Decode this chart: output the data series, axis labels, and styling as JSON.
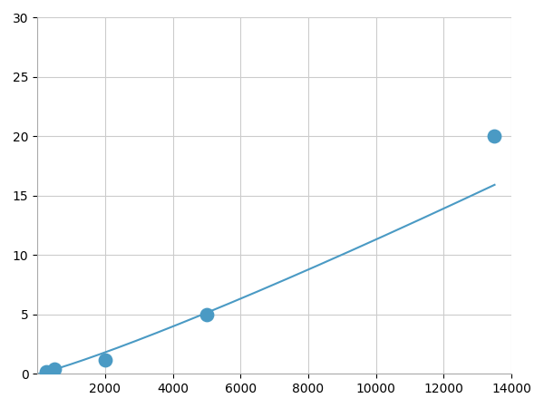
{
  "x_points": [
    250,
    500,
    2000,
    5000,
    13500
  ],
  "y_points": [
    0.2,
    0.4,
    1.2,
    5.0,
    20.0
  ],
  "line_color": "#4a9ac4",
  "marker_color": "#4a9ac4",
  "marker_size": 6,
  "line_width": 1.5,
  "xlim": [
    0,
    14000
  ],
  "ylim": [
    0,
    30
  ],
  "xticks": [
    2000,
    4000,
    6000,
    8000,
    10000,
    12000,
    14000
  ],
  "yticks": [
    0,
    5,
    10,
    15,
    20,
    25,
    30
  ],
  "grid_color": "#cccccc",
  "background_color": "#ffffff",
  "tick_label_fontsize": 10
}
